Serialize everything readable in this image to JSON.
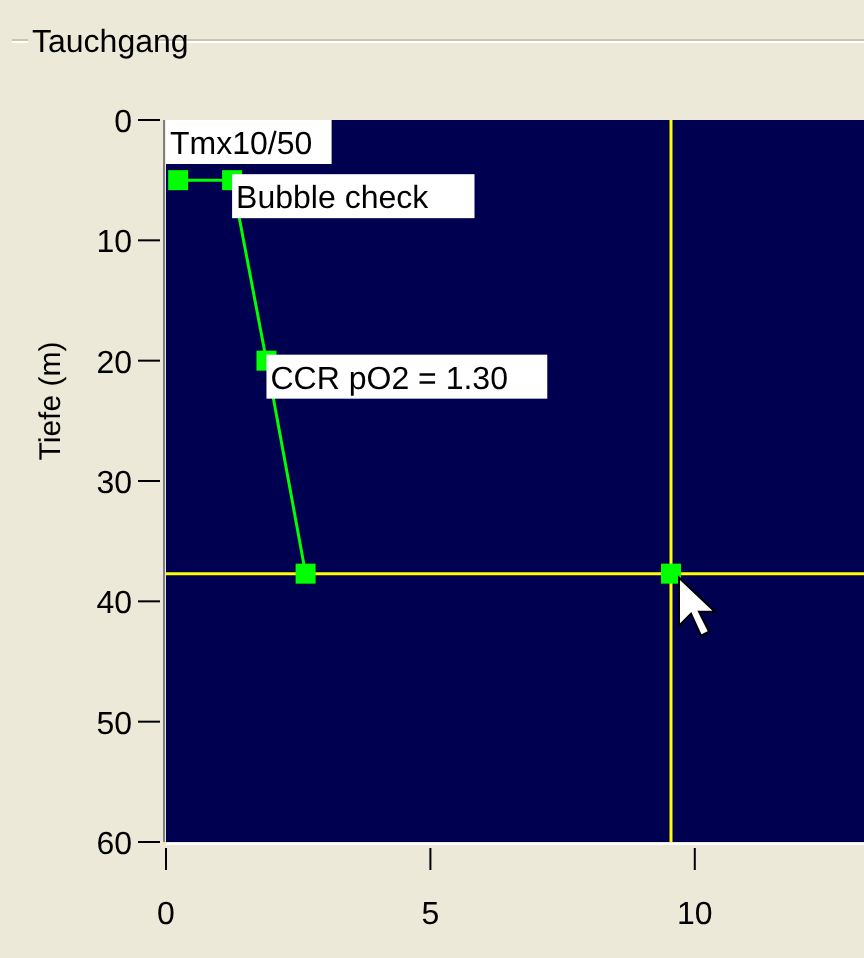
{
  "chart_data": {
    "type": "line",
    "title": "Tauchgang",
    "ylabel": "Tiefe (m)",
    "xlim": [
      0,
      13.2
    ],
    "xticks": [
      0,
      5,
      10
    ],
    "ylim": [
      60,
      0
    ],
    "yticks": [
      0,
      10,
      20,
      30,
      40,
      50,
      60
    ],
    "marker": "square",
    "line_style": "solid",
    "grid": false,
    "series": [
      {
        "color": "#00ff00",
        "x": [
          0.23,
          1.25,
          1.9,
          2.64
        ],
        "values": [
          5,
          5,
          20,
          37.7
        ]
      },
      {
        "type": "scatter",
        "color": "#00ff00",
        "x": [
          9.55
        ],
        "values": [
          37.7
        ]
      }
    ],
    "ref_lines": [
      {
        "axis": "x",
        "value": 9.55,
        "color": "#ffff00"
      },
      {
        "axis": "y",
        "value": 37.7,
        "color": "#ffff00"
      }
    ],
    "annotations": [
      "Tmx10/50",
      {
        "text": "Bubble check",
        "x": 1.25,
        "y": 5
      },
      {
        "text": "CCR pO2 = 1.30",
        "x": 1.9,
        "y": 20
      }
    ]
  }
}
